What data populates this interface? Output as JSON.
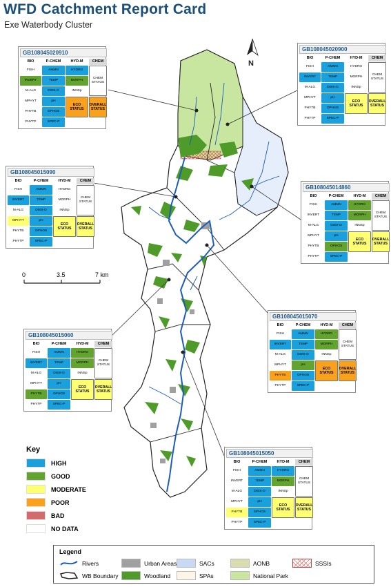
{
  "header": {
    "title": "WFD Catchment Report Card",
    "subtitle": "Exe Waterbody Cluster"
  },
  "colors": {
    "high": "#1aa0dc",
    "good": "#63a32f",
    "moderate": "#ffff72",
    "poor": "#f9a11b",
    "bad": "#d26b6b",
    "no_data": "#ffffff",
    "urban": "#a0a0a0",
    "woodland": "#4e9b2a",
    "national_park": "#c8e6a0",
    "river": "#1a5db8",
    "sac": "#c7d9f5",
    "aonb": "#d8dcb0"
  },
  "north_label": "N",
  "scale_bar": {
    "labels": [
      "0",
      "3.5",
      "7 km"
    ]
  },
  "card_headers": {
    "bio": "BIO",
    "pchem": "P-CHEM",
    "hydm": "HYD-M",
    "chem": "CHEM"
  },
  "card_labels": {
    "bio": [
      "FISH",
      "INVERT",
      "M-ALG",
      "MPHYT",
      "PHYTB",
      "PHYTP"
    ],
    "pchem": [
      "AMMN",
      "TEMP",
      "DISS-O",
      "pH",
      "OPHOS",
      "SPEC-P"
    ],
    "hydm": [
      "HYDRO",
      "MORPH",
      "INNSp"
    ],
    "eco": "ECO STATUS",
    "chem_status": "CHEM STATUS",
    "overall": "OVERALL STATUS"
  },
  "cards": [
    {
      "id": "GB108045020910",
      "bio": [
        "nodata",
        "good",
        "nodata",
        "nodata",
        "nodata",
        "nodata"
      ],
      "pchem": [
        "high",
        "high",
        "high",
        "high",
        "high",
        "high"
      ],
      "hydm": [
        "high",
        "good",
        "nodata"
      ],
      "eco": "poor",
      "chem": "nodata",
      "overall": "poor"
    },
    {
      "id": "GB108045020900",
      "bio": [
        "nodata",
        "high",
        "nodata",
        "nodata",
        "nodata",
        "nodata"
      ],
      "pchem": [
        "high",
        "high",
        "high",
        "high",
        "high",
        "high"
      ],
      "hydm": [
        "nodata",
        "nodata",
        "nodata"
      ],
      "eco": "moderate",
      "chem": "nodata",
      "overall": "moderate"
    },
    {
      "id": "GB108045015090",
      "bio": [
        "nodata",
        "high",
        "nodata",
        "moderate",
        "nodata",
        "nodata"
      ],
      "pchem": [
        "high",
        "high",
        "high",
        "high",
        "high",
        "high"
      ],
      "hydm": [
        "nodata",
        "nodata",
        "nodata"
      ],
      "eco": "moderate",
      "chem": "nodata",
      "overall": "moderate"
    },
    {
      "id": "GB108045014860",
      "bio": [
        "nodata",
        "nodata",
        "nodata",
        "nodata",
        "nodata",
        "nodata"
      ],
      "pchem": [
        "high",
        "high",
        "high",
        "high",
        "good",
        "high"
      ],
      "hydm": [
        "good",
        "good",
        "nodata"
      ],
      "eco": "moderate",
      "chem": "nodata",
      "overall": "moderate"
    },
    {
      "id": "GB108045015070",
      "bio": [
        "nodata",
        "high",
        "nodata",
        "nodata",
        "poor",
        "nodata"
      ],
      "pchem": [
        "high",
        "high",
        "high",
        "good",
        "high",
        "high"
      ],
      "hydm": [
        "good",
        "good",
        "nodata"
      ],
      "eco": "poor",
      "chem": "nodata",
      "overall": "poor"
    },
    {
      "id": "GB108045015060",
      "bio": [
        "nodata",
        "high",
        "nodata",
        "nodata",
        "good",
        "nodata"
      ],
      "pchem": [
        "high",
        "high",
        "high",
        "high",
        "high",
        "high"
      ],
      "hydm": [
        "good",
        "good",
        "nodata"
      ],
      "eco": "moderate",
      "chem": "nodata",
      "overall": "moderate"
    },
    {
      "id": "GB108045015050",
      "bio": [
        "nodata",
        "nodata",
        "nodata",
        "nodata",
        "moderate",
        "nodata"
      ],
      "pchem": [
        "high",
        "high",
        "high",
        "high",
        "high",
        "high"
      ],
      "hydm": [
        "high",
        "good",
        "nodata"
      ],
      "eco": "moderate",
      "chem": "nodata",
      "overall": "moderate"
    }
  ],
  "key": {
    "title": "Key",
    "items": [
      {
        "label": "HIGH",
        "color": "#1aa0dc"
      },
      {
        "label": "GOOD",
        "color": "#63a32f"
      },
      {
        "label": "MODERATE",
        "color": "#ffff72"
      },
      {
        "label": "POOR",
        "color": "#f9a11b"
      },
      {
        "label": "BAD",
        "color": "#d26b6b"
      },
      {
        "label": "NO DATA",
        "color": "#ffffff"
      }
    ]
  },
  "legend": {
    "title": "Legend",
    "items": [
      {
        "label": "Rivers",
        "icon": "river-line-icon"
      },
      {
        "label": "WB Boundary",
        "icon": "boundary-outline-icon"
      },
      {
        "label": "Urban Areas",
        "color": "#a0a0a0"
      },
      {
        "label": "Woodland",
        "color": "#4e9b2a"
      },
      {
        "label": "SACs",
        "color": "#c7d9f5"
      },
      {
        "label": "SPAs",
        "color": "#fdf6e6"
      },
      {
        "label": "AONB",
        "color": "#d8dcb0"
      },
      {
        "label": "National Park",
        "color": "#c8e6a0"
      },
      {
        "label": "SSSIs",
        "color": "#ffffff"
      }
    ]
  }
}
